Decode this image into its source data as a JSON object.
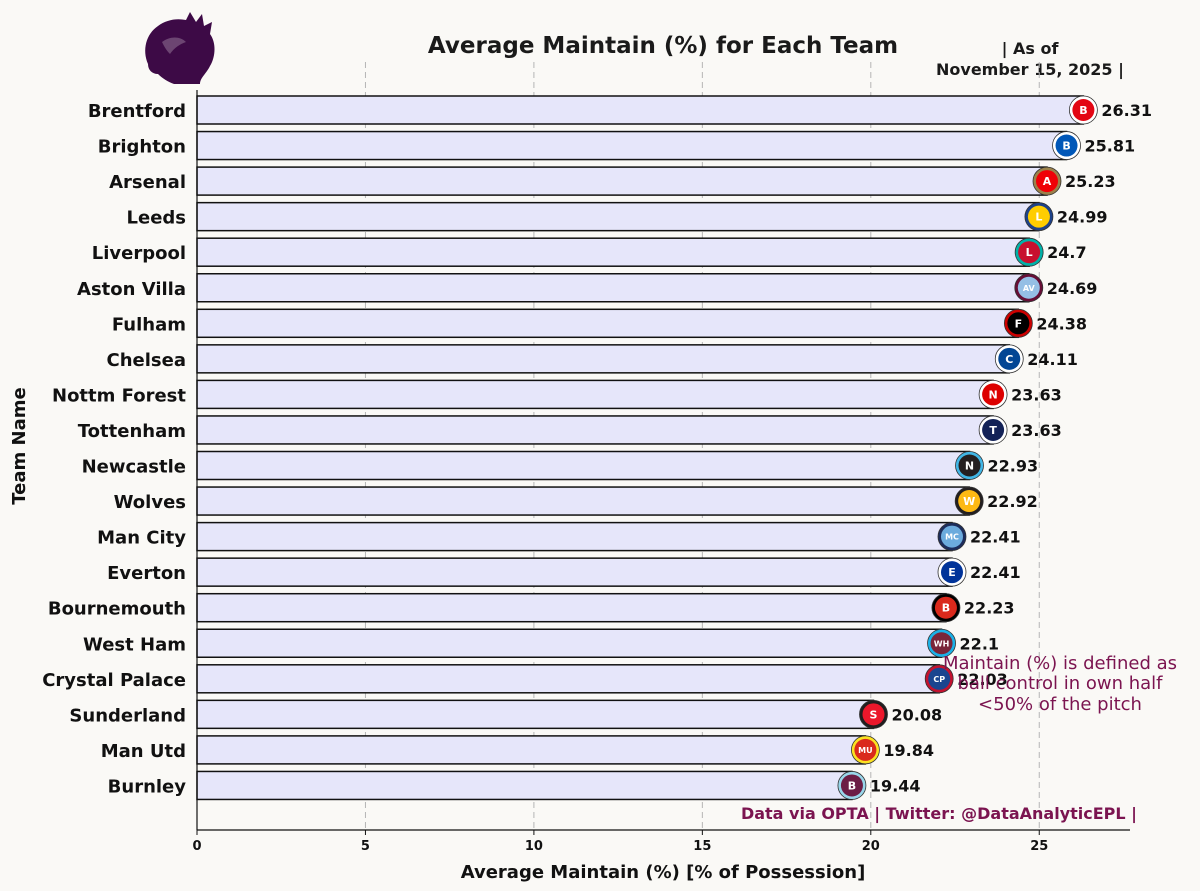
{
  "colors": {
    "background": "#faf9f6",
    "bar_fill": "#e6e6fa",
    "bar_stroke": "#111111",
    "grid": "#b5b5b5",
    "note": "#7b1450",
    "logo": "#3d0a46"
  },
  "logo": {
    "icon": "premier-league-lion-icon"
  },
  "chart_data": {
    "type": "bar",
    "orientation": "horizontal",
    "title": "Average Maintain (%) for Each Team",
    "as_of_line1": "| As of",
    "as_of_line2": "November 15, 2025 |",
    "xlabel": "Average Maintain (%) [% of Possession]",
    "ylabel": "Team Name",
    "xlim": [
      0,
      27.6
    ],
    "xticks": [
      0,
      5,
      10,
      15,
      20,
      25
    ],
    "xtick_labels": [
      "0",
      "5",
      "10",
      "15",
      "20",
      "25"
    ],
    "grid": "vertical dashed",
    "categories": [
      "Brentford",
      "Brighton",
      "Arsenal",
      "Leeds",
      "Liverpool",
      "Aston Villa",
      "Fulham",
      "Chelsea",
      "Nottm Forest",
      "Tottenham",
      "Newcastle",
      "Wolves",
      "Man City",
      "Everton",
      "Bournemouth",
      "West Ham",
      "Crystal Palace",
      "Sunderland",
      "Man Utd",
      "Burnley"
    ],
    "values": [
      26.31,
      25.81,
      25.23,
      24.99,
      24.7,
      24.69,
      24.38,
      24.11,
      23.63,
      23.63,
      22.93,
      22.92,
      22.41,
      22.41,
      22.23,
      22.1,
      22.03,
      20.08,
      19.84,
      19.44
    ],
    "value_labels": [
      "26.31",
      "25.81",
      "25.23",
      "24.99",
      "24.7",
      "24.69",
      "24.38",
      "24.11",
      "23.63",
      "23.63",
      "22.93",
      "22.92",
      "22.41",
      "22.41",
      "22.23",
      "22.1",
      "22.03",
      "20.08",
      "19.84",
      "19.44"
    ],
    "team_badges": [
      {
        "icon": "brentford-crest-icon",
        "color": "#e30613",
        "ring": "#ffffff",
        "text": "B"
      },
      {
        "icon": "brighton-crest-icon",
        "color": "#0057b8",
        "ring": "#ffffff",
        "text": "B"
      },
      {
        "icon": "arsenal-crest-icon",
        "color": "#ef0107",
        "ring": "#9c824a",
        "text": "A"
      },
      {
        "icon": "leeds-crest-icon",
        "color": "#ffcd00",
        "ring": "#1d428a",
        "text": "L"
      },
      {
        "icon": "liverpool-crest-icon",
        "color": "#c8102e",
        "ring": "#00b2a9",
        "text": "L"
      },
      {
        "icon": "aston-villa-crest-icon",
        "color": "#95bfe5",
        "ring": "#670e36",
        "text": "AV"
      },
      {
        "icon": "fulham-crest-icon",
        "color": "#000000",
        "ring": "#cc0000",
        "text": "F"
      },
      {
        "icon": "chelsea-crest-icon",
        "color": "#034694",
        "ring": "#ffffff",
        "text": "C"
      },
      {
        "icon": "nottm-forest-crest-icon",
        "color": "#dd0000",
        "ring": "#ffffff",
        "text": "N"
      },
      {
        "icon": "tottenham-crest-icon",
        "color": "#132257",
        "ring": "#ffffff",
        "text": "T"
      },
      {
        "icon": "newcastle-crest-icon",
        "color": "#241f20",
        "ring": "#41b6e6",
        "text": "N"
      },
      {
        "icon": "wolves-crest-icon",
        "color": "#fdb913",
        "ring": "#231f20",
        "text": "W"
      },
      {
        "icon": "man-city-crest-icon",
        "color": "#6cabdd",
        "ring": "#1c2c5b",
        "text": "MC"
      },
      {
        "icon": "everton-crest-icon",
        "color": "#003399",
        "ring": "#ffffff",
        "text": "E"
      },
      {
        "icon": "bournemouth-crest-icon",
        "color": "#da291c",
        "ring": "#000000",
        "text": "B"
      },
      {
        "icon": "west-ham-crest-icon",
        "color": "#7a263a",
        "ring": "#1bb1e7",
        "text": "WH"
      },
      {
        "icon": "crystal-palace-crest-icon",
        "color": "#1b458f",
        "ring": "#c4122e",
        "text": "CP"
      },
      {
        "icon": "sunderland-crest-icon",
        "color": "#eb172b",
        "ring": "#211e1f",
        "text": "S"
      },
      {
        "icon": "man-utd-crest-icon",
        "color": "#da291c",
        "ring": "#fbe122",
        "text": "MU"
      },
      {
        "icon": "burnley-crest-icon",
        "color": "#6c1d45",
        "ring": "#99d6ea",
        "text": "B"
      }
    ],
    "note_lines": [
      "Maintain (%) is defined as",
      "ball control in own half",
      "<50% of the pitch"
    ],
    "source": "Data via OPTA | Twitter: @DataAnalyticEPL |"
  }
}
